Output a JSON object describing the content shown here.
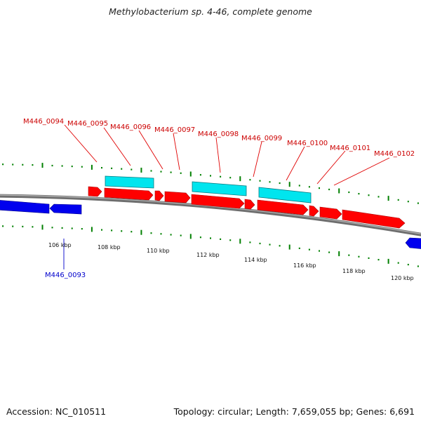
{
  "title": "Methylobacterium sp. 4-46, complete genome",
  "footer": {
    "accession": "Accession: NC_010511",
    "summary": "Topology: circular; Length: 7,659,055 bp; Genes: 6,691"
  },
  "colors": {
    "forward_gene": "#ff0000",
    "reverse_gene": "#0000ee",
    "feature": "#00e5ee",
    "backbone": "#808080",
    "tick": "#008000",
    "forward_label": "#cc0000",
    "reverse_label": "#0000cc"
  },
  "scale": {
    "unit": "kbp",
    "labels": [
      "106 kbp",
      "108 kbp",
      "110 kbp",
      "112 kbp",
      "114 kbp",
      "116 kbp",
      "118 kbp",
      "120 kbp"
    ]
  },
  "forward_genes": [
    {
      "name": "M446_0094",
      "label": "M446_0094"
    },
    {
      "name": "M446_0095",
      "label": "M446_0095"
    },
    {
      "name": "M446_0096",
      "label": "M446_0096"
    },
    {
      "name": "M446_0097",
      "label": "M446_0097"
    },
    {
      "name": "M446_0098",
      "label": "M446_0098"
    },
    {
      "name": "M446_0099",
      "label": "M446_0099"
    },
    {
      "name": "M446_0100",
      "label": "M446_0100"
    },
    {
      "name": "M446_0101",
      "label": "M446_0101"
    },
    {
      "name": "M446_0102",
      "label": "M446_0102"
    }
  ],
  "reverse_genes": [
    {
      "name": "M446_0093",
      "label": "M446_0093"
    }
  ]
}
